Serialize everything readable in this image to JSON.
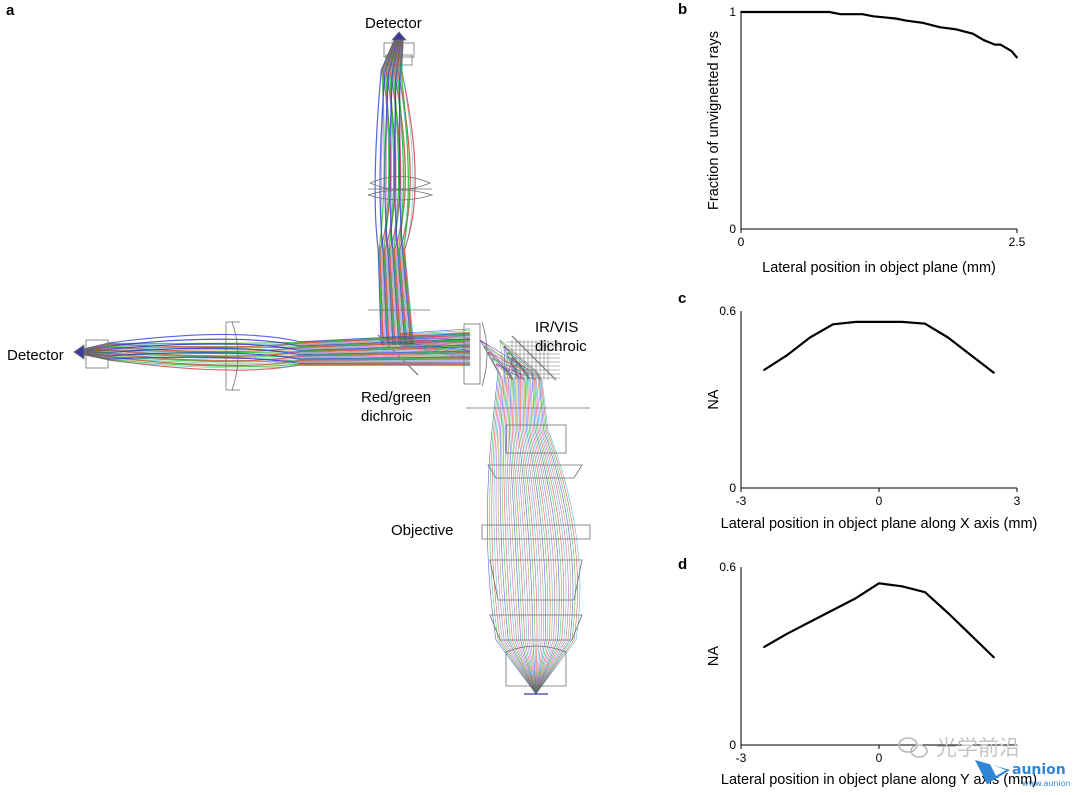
{
  "panels": {
    "a": "a",
    "b": "b",
    "c": "c",
    "d": "d"
  },
  "diagram": {
    "labels": {
      "detector_top": "Detector",
      "detector_left": "Detector",
      "ir_vis_line1": "IR/VIS",
      "ir_vis_line2": "dichroic",
      "red_green_line1": "Red/green",
      "red_green_line2": "dichroic",
      "objective": "Objective"
    },
    "ray_colors": {
      "blue": "#1f2fd6",
      "green": "#12b81c",
      "red": "#d8262a",
      "cyan": "#2aa6b8",
      "magenta": "#b03ab0",
      "olive": "#8c8c2a",
      "lens": "#7a7a7a"
    }
  },
  "chart_data": [
    {
      "id": "b",
      "type": "line",
      "xlabel": "Lateral position in object plane (mm)",
      "ylabel": "Fraction of unvignetted rays",
      "xlim": [
        0,
        2.5
      ],
      "ylim": [
        0,
        1
      ],
      "xticks": [
        0,
        2.5
      ],
      "xtick_labels": [
        "0",
        "2.5"
      ],
      "yticks": [
        0,
        1
      ],
      "ytick_labels": [
        "0",
        "1"
      ],
      "grid": false,
      "x": [
        0,
        0.2,
        0.4,
        0.6,
        0.8,
        0.9,
        1.1,
        1.2,
        1.4,
        1.5,
        1.65,
        1.8,
        1.95,
        2.1,
        2.2,
        2.3,
        2.35,
        2.45,
        2.5
      ],
      "y": [
        1.0,
        1.0,
        1.0,
        1.0,
        1.0,
        0.99,
        0.99,
        0.98,
        0.97,
        0.96,
        0.95,
        0.93,
        0.92,
        0.9,
        0.87,
        0.85,
        0.85,
        0.82,
        0.79
      ]
    },
    {
      "id": "c",
      "type": "line",
      "xlabel": "Lateral position in object plane along X axis (mm)",
      "ylabel": "NA",
      "xlim": [
        -3,
        3
      ],
      "ylim": [
        0,
        0.6
      ],
      "xticks": [
        -3,
        0,
        3
      ],
      "xtick_labels": [
        "-3",
        "0",
        "3"
      ],
      "yticks": [
        0,
        0.6
      ],
      "ytick_labels": [
        "0",
        "0.6"
      ],
      "grid": false,
      "x": [
        -2.5,
        -2.0,
        -1.5,
        -1.0,
        -0.5,
        0.0,
        0.5,
        1.0,
        1.5,
        2.0,
        2.5
      ],
      "y": [
        0.4,
        0.45,
        0.51,
        0.555,
        0.563,
        0.563,
        0.563,
        0.557,
        0.51,
        0.45,
        0.39
      ]
    },
    {
      "id": "d",
      "type": "line",
      "xlabel": "Lateral position in object plane along Y axis (mm)",
      "ylabel": "NA",
      "xlim": [
        -3,
        3
      ],
      "ylim": [
        0,
        0.6
      ],
      "xticks": [
        -3,
        0
      ],
      "xtick_labels": [
        "-3",
        "0"
      ],
      "yticks": [
        0,
        0.6
      ],
      "ytick_labels": [
        "0",
        "0.6"
      ],
      "grid": false,
      "x": [
        -2.5,
        -2.0,
        -1.5,
        -1.0,
        -0.5,
        0.0,
        0.5,
        1.0,
        1.5,
        2.0,
        2.5
      ],
      "y": [
        0.33,
        0.375,
        0.415,
        0.455,
        0.495,
        0.545,
        0.535,
        0.515,
        0.445,
        0.37,
        0.295
      ]
    }
  ],
  "watermark": {
    "text": "光学前沿",
    "brand": "aunion",
    "brand_sub": "www.aunion",
    "icon": "wechat-icon"
  }
}
